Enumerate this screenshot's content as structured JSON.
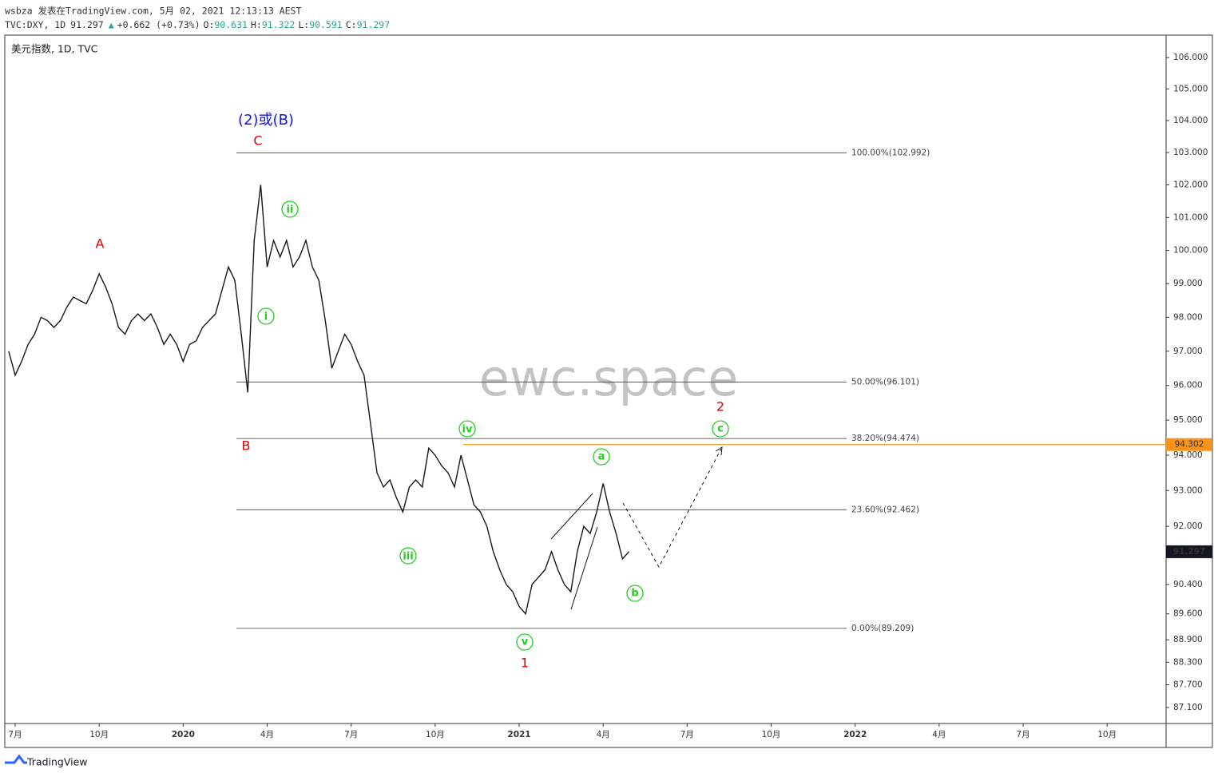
{
  "header": {
    "line1": "wsbza 发表在TradingView.com, 5月 02, 2021 12:13:13 AEST",
    "symbol": "TVC:DXY, 1D",
    "last": "91.297",
    "arrow": "▲",
    "change": "+0.662 (+0.73%)",
    "open_label": "O:",
    "open": "90.631",
    "high_label": "H:",
    "high": "91.322",
    "low_label": "L:",
    "low": "90.591",
    "close_label": "C:",
    "close": "91.297"
  },
  "legend": "美元指数, 1D, TVC",
  "watermark": "ewc.space",
  "footer": "TradingView",
  "chart_data": {
    "type": "line",
    "log_scale": true,
    "series": [
      {
        "color": "#131722",
        "values": [
          97,
          96.3,
          96.7,
          97.2,
          97.5,
          98,
          97.9,
          97.7,
          97.9,
          98.3,
          98.6,
          98.5,
          98.4,
          98.8,
          99.3,
          98.9,
          98.4,
          97.7,
          97.5,
          97.9,
          98.1,
          97.9,
          98.1,
          97.7,
          97.2,
          97.5,
          97.2,
          96.7,
          97.2,
          97.3,
          97.7,
          97.9,
          98.1,
          98.8,
          99.5,
          99.1,
          97.5,
          95.8,
          100.3,
          102,
          99.5,
          100.3,
          99.8,
          100.3,
          99.5,
          99.8,
          100.3,
          99.5,
          99.1,
          97.9,
          96.5,
          97,
          97.5,
          97.2,
          96.7,
          96.3,
          94.9,
          93.5,
          93.1,
          93.3,
          92.8,
          92.4,
          93.1,
          93.3,
          93.1,
          94.2,
          94,
          93.7,
          93.5,
          93.1,
          94,
          93.3,
          92.6,
          92.4,
          92,
          91.3,
          90.8,
          90.4,
          90.2,
          89.8,
          89.6,
          90.4,
          90.6,
          90.8,
          91.3,
          90.8,
          90.4,
          90.2,
          91.3,
          92,
          91.8,
          92.4,
          93.2,
          92.4,
          91.8,
          91.1,
          91.3,
          null,
          null,
          null,
          null,
          null,
          null,
          null,
          null,
          null,
          null,
          null,
          null,
          null,
          null,
          null,
          null,
          null,
          null,
          null,
          null,
          null,
          null,
          null,
          null,
          null,
          null,
          null,
          null,
          null,
          null,
          null,
          null,
          null,
          null,
          null,
          null,
          null,
          null,
          null,
          null,
          null,
          null,
          null,
          null,
          null,
          null,
          null,
          null,
          null,
          null,
          null,
          null,
          null,
          null,
          null,
          null,
          null,
          null,
          null,
          null,
          null,
          null,
          null,
          null,
          null,
          null,
          null,
          null,
          null,
          null,
          null,
          null,
          null,
          null,
          null,
          null,
          null,
          null,
          null,
          null,
          null,
          null
        ]
      }
    ],
    "categories": [
      null,
      "7月",
      null,
      null,
      null,
      null,
      null,
      null,
      null,
      null,
      null,
      null,
      null,
      null,
      "10月",
      null,
      null,
      null,
      null,
      null,
      null,
      null,
      null,
      null,
      null,
      null,
      null,
      "2020",
      null,
      null,
      null,
      null,
      null,
      null,
      null,
      null,
      null,
      null,
      null,
      null,
      "4月",
      null,
      null,
      null,
      null,
      null,
      null,
      null,
      null,
      null,
      null,
      null,
      null,
      "7月",
      null,
      null,
      null,
      null,
      null,
      null,
      null,
      null,
      null,
      null,
      null,
      null,
      "10月",
      null,
      null,
      null,
      null,
      null,
      null,
      null,
      null,
      null,
      null,
      null,
      null,
      "2021",
      null,
      null,
      null,
      null,
      null,
      null,
      null,
      null,
      null,
      null,
      null,
      null,
      "4月",
      null,
      null,
      null,
      null,
      null,
      null,
      null,
      null,
      null,
      null,
      null,
      null,
      "7月",
      null,
      null,
      null,
      null,
      null,
      null,
      null,
      null,
      null,
      null,
      null,
      null,
      "10月",
      null,
      null,
      null,
      null,
      null,
      null,
      null,
      null,
      null,
      null,
      null,
      null,
      "2022",
      null,
      null,
      null,
      null,
      null,
      null,
      null,
      null,
      null,
      null,
      null,
      null,
      "4月",
      null,
      null,
      null,
      null,
      null,
      null,
      null,
      null,
      null,
      null,
      null,
      null,
      "7月",
      null,
      null,
      null,
      null,
      null,
      null,
      null,
      null,
      null,
      null,
      null,
      null,
      "10月",
      null,
      null,
      null,
      null,
      null,
      null,
      null,
      null
    ],
    "ylim": [
      86.68,
      106.72
    ],
    "yticks": [
      {
        "value": 106,
        "label": "106.000"
      },
      {
        "value": 105,
        "label": "105.000"
      },
      {
        "value": 104,
        "label": "104.000"
      },
      {
        "value": 103,
        "label": "103.000"
      },
      {
        "value": 102,
        "label": "102.000"
      },
      {
        "value": 101,
        "label": "101.000"
      },
      {
        "value": 100,
        "label": "100.000"
      },
      {
        "value": 99,
        "label": "99.000"
      },
      {
        "value": 98,
        "label": "98.000"
      },
      {
        "value": 97,
        "label": "97.000"
      },
      {
        "value": 96,
        "label": "96.000"
      },
      {
        "value": 95,
        "label": "95.000"
      },
      {
        "value": 94,
        "label": "94.000"
      },
      {
        "value": 93,
        "label": "93.000"
      },
      {
        "value": 92,
        "label": "92.000"
      },
      {
        "value": 90.4,
        "label": "90.400"
      },
      {
        "value": 89.6,
        "label": "89.600"
      },
      {
        "value": 88.9,
        "label": "88.900"
      },
      {
        "value": 88.3,
        "label": "88.300"
      },
      {
        "value": 87.7,
        "label": "87.700"
      },
      {
        "value": 87.1,
        "label": "87.100"
      }
    ],
    "levels": [
      {
        "value": 102.992,
        "label": "100.00%(102.992)"
      },
      {
        "value": 96.101,
        "label": "50.00%(96.101)"
      },
      {
        "value": 94.474,
        "label": "38.20%(94.474)"
      },
      {
        "value": 92.462,
        "label": "23.60%(92.462)"
      },
      {
        "value": 89.209,
        "label": "0.00%(89.209)"
      }
    ],
    "level_color": "#555555",
    "resistance": {
      "value": 94.302,
      "label": "94.302",
      "color": "#f7931a"
    },
    "last_price": {
      "value": 91.297,
      "label": "91.297",
      "color": "#131722"
    },
    "annotations": [
      "(2)或(B)",
      "C",
      "A",
      "B",
      "1",
      "2",
      "i",
      "ii",
      "iii",
      "iv",
      "v",
      "a",
      "b",
      "c"
    ]
  }
}
